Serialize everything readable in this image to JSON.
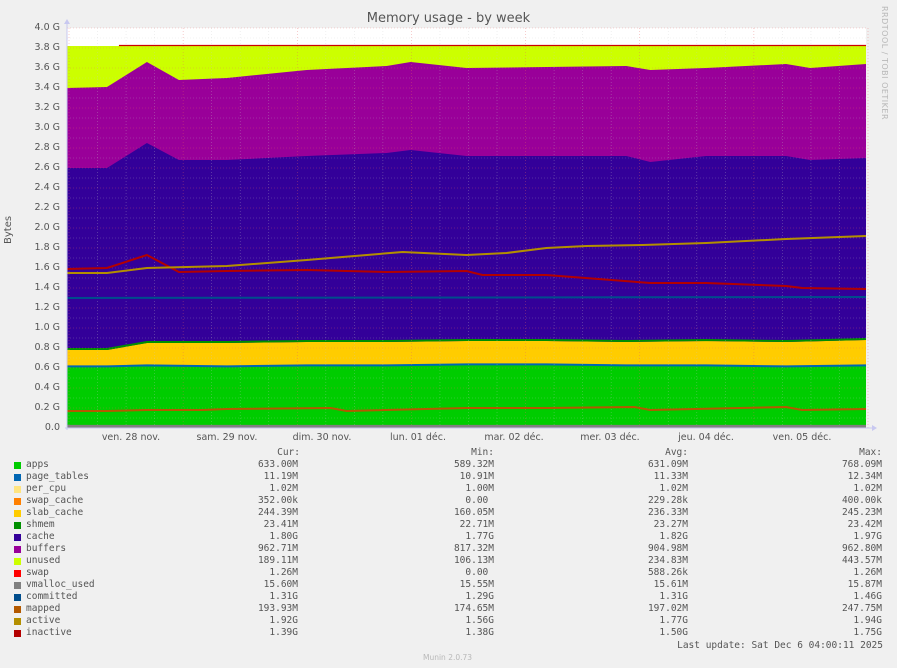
{
  "header": {
    "title": "Memory usage - by week",
    "watermark": "RRDTOOL / TOBI OETIKER",
    "ylabel": "Bytes"
  },
  "axes": {
    "y_ticks": [
      "4.0 G",
      "3.8 G",
      "3.6 G",
      "3.4 G",
      "3.2 G",
      "3.0 G",
      "2.8 G",
      "2.6 G",
      "2.4 G",
      "2.2 G",
      "2.0 G",
      "1.8 G",
      "1.6 G",
      "1.4 G",
      "1.2 G",
      "1.0 G",
      "0.8 G",
      "0.6 G",
      "0.4 G",
      "0.2 G",
      "0.0"
    ],
    "x_ticks": [
      "ven. 28 nov.",
      "sam. 29 nov.",
      "dim. 30 nov.",
      "lun. 01 déc.",
      "mar. 02 déc.",
      "mer. 03 déc.",
      "jeu. 04 déc.",
      "ven. 05 déc."
    ]
  },
  "legend": {
    "headers": {
      "cur": "Cur:",
      "min": "Min:",
      "avg": "Avg:",
      "max": "Max:"
    },
    "rows": [
      {
        "name": "apps",
        "color": "#00cc00",
        "cur": "633.00M",
        "min": "589.32M",
        "avg": "631.09M",
        "max": "768.09M"
      },
      {
        "name": "page_tables",
        "color": "#0066b3",
        "cur": "11.19M",
        "min": "10.91M",
        "avg": "11.33M",
        "max": "12.34M"
      },
      {
        "name": "per_cpu",
        "color": "#ffe480",
        "cur": "1.02M",
        "min": "1.00M",
        "avg": "1.02M",
        "max": "1.02M"
      },
      {
        "name": "swap_cache",
        "color": "#ff8000",
        "cur": "352.00k",
        "min": "0.00 ",
        "avg": "229.28k",
        "max": "400.00k"
      },
      {
        "name": "slab_cache",
        "color": "#ffcc00",
        "cur": "244.39M",
        "min": "160.05M",
        "avg": "236.33M",
        "max": "245.23M"
      },
      {
        "name": "shmem",
        "color": "#008f00",
        "cur": "23.41M",
        "min": "22.71M",
        "avg": "23.27M",
        "max": "23.42M"
      },
      {
        "name": "cache",
        "color": "#330099",
        "cur": "1.80G",
        "min": "1.77G",
        "avg": "1.82G",
        "max": "1.97G"
      },
      {
        "name": "buffers",
        "color": "#990099",
        "cur": "962.71M",
        "min": "817.32M",
        "avg": "904.98M",
        "max": "962.80M"
      },
      {
        "name": "unused",
        "color": "#ccff00",
        "cur": "189.11M",
        "min": "106.13M",
        "avg": "234.83M",
        "max": "443.57M"
      },
      {
        "name": "swap",
        "color": "#ff0000",
        "cur": "1.26M",
        "min": "0.00 ",
        "avg": "588.26k",
        "max": "1.26M"
      },
      {
        "name": "vmalloc_used",
        "color": "#808080",
        "cur": "15.60M",
        "min": "15.55M",
        "avg": "15.61M",
        "max": "15.87M"
      },
      {
        "name": "committed",
        "color": "#004d8c",
        "cur": "1.31G",
        "min": "1.29G",
        "avg": "1.31G",
        "max": "1.46G"
      },
      {
        "name": "mapped",
        "color": "#b35900",
        "cur": "193.93M",
        "min": "174.65M",
        "avg": "197.02M",
        "max": "247.75M"
      },
      {
        "name": "active",
        "color": "#b38f00",
        "cur": "1.92G",
        "min": "1.56G",
        "avg": "1.77G",
        "max": "1.94G"
      },
      {
        "name": "inactive",
        "color": "#b30000",
        "cur": "1.39G",
        "min": "1.38G",
        "avg": "1.50G",
        "max": "1.75G"
      }
    ]
  },
  "footer": {
    "last_update": "Last update: Sat Dec  6 04:00:11 2025",
    "version": "Munin 2.0.73"
  },
  "chart_data": {
    "type": "area",
    "title": "Memory usage - by week",
    "xlabel": "",
    "ylabel": "Bytes",
    "ylim": [
      0,
      4.0
    ],
    "y_unit": "GB",
    "grid": true,
    "legend_position": "bottom",
    "x": [
      "ven. 28 nov.",
      "sam. 29 nov.",
      "dim. 30 nov.",
      "lun. 01 déc.",
      "mar. 02 déc.",
      "mer. 03 déc.",
      "jeu. 04 déc.",
      "ven. 05 déc."
    ],
    "stacked_series_cumulative_top": [
      {
        "name": "apps",
        "color": "#00cc00",
        "x": [
          0,
          0.05,
          0.1,
          0.2,
          0.3,
          0.4,
          0.5,
          0.6,
          0.7,
          0.8,
          0.9,
          1.0
        ],
        "values": [
          0.61,
          0.61,
          0.62,
          0.61,
          0.62,
          0.62,
          0.63,
          0.63,
          0.62,
          0.62,
          0.61,
          0.62
        ]
      },
      {
        "name": "slab_cache",
        "color": "#ffcc00",
        "x": [
          0,
          0.05,
          0.1,
          0.2,
          0.3,
          0.4,
          0.5,
          0.6,
          0.7,
          0.8,
          0.9,
          1.0
        ],
        "values": [
          0.78,
          0.78,
          0.85,
          0.85,
          0.86,
          0.86,
          0.87,
          0.87,
          0.86,
          0.87,
          0.86,
          0.88
        ]
      },
      {
        "name": "cache",
        "color": "#330099",
        "x": [
          0,
          0.05,
          0.1,
          0.14,
          0.2,
          0.3,
          0.4,
          0.43,
          0.5,
          0.6,
          0.7,
          0.73,
          0.8,
          0.9,
          0.93,
          1.0
        ],
        "values": [
          2.6,
          2.6,
          2.85,
          2.68,
          2.68,
          2.72,
          2.75,
          2.78,
          2.72,
          2.72,
          2.72,
          2.66,
          2.72,
          2.72,
          2.68,
          2.7
        ]
      },
      {
        "name": "buffers",
        "color": "#990099",
        "x": [
          0,
          0.05,
          0.1,
          0.14,
          0.2,
          0.3,
          0.4,
          0.43,
          0.5,
          0.6,
          0.7,
          0.73,
          0.8,
          0.9,
          0.93,
          1.0
        ],
        "values": [
          3.4,
          3.41,
          3.66,
          3.48,
          3.5,
          3.58,
          3.62,
          3.66,
          3.6,
          3.61,
          3.62,
          3.58,
          3.6,
          3.64,
          3.6,
          3.64
        ]
      },
      {
        "name": "unused",
        "color": "#ccff00",
        "x": [
          0,
          1.0
        ],
        "values": [
          3.82,
          3.82
        ]
      }
    ],
    "line_series": [
      {
        "name": "inactive",
        "color": "#b30000",
        "x": [
          0,
          0.05,
          0.1,
          0.14,
          0.2,
          0.3,
          0.4,
          0.5,
          0.52,
          0.6,
          0.73,
          0.8,
          0.9,
          0.92,
          1.0
        ],
        "values": [
          1.59,
          1.6,
          1.73,
          1.56,
          1.57,
          1.58,
          1.56,
          1.57,
          1.53,
          1.53,
          1.45,
          1.45,
          1.42,
          1.4,
          1.39
        ]
      },
      {
        "name": "active",
        "color": "#b38f00",
        "x": [
          0,
          0.05,
          0.1,
          0.2,
          0.3,
          0.33,
          0.42,
          0.5,
          0.55,
          0.6,
          0.65,
          0.72,
          0.8,
          0.9,
          1.0
        ],
        "values": [
          1.55,
          1.55,
          1.6,
          1.62,
          1.68,
          1.7,
          1.76,
          1.73,
          1.75,
          1.8,
          1.82,
          1.83,
          1.85,
          1.89,
          1.92
        ]
      },
      {
        "name": "committed",
        "color": "#004d8c",
        "x": [
          0,
          1.0
        ],
        "values": [
          1.3,
          1.31
        ]
      },
      {
        "name": "mapped",
        "color": "#b35900",
        "x": [
          0,
          0.05,
          0.1,
          0.17,
          0.2,
          0.33,
          0.35,
          0.5,
          0.52,
          0.6,
          0.71,
          0.73,
          0.9,
          0.92,
          1.0
        ],
        "values": [
          0.17,
          0.17,
          0.18,
          0.18,
          0.19,
          0.2,
          0.17,
          0.2,
          0.2,
          0.2,
          0.21,
          0.18,
          0.21,
          0.18,
          0.19
        ]
      },
      {
        "name": "vmalloc_used",
        "color": "#808080",
        "x": [
          0,
          1.0
        ],
        "values": [
          0.016,
          0.016
        ]
      }
    ]
  }
}
